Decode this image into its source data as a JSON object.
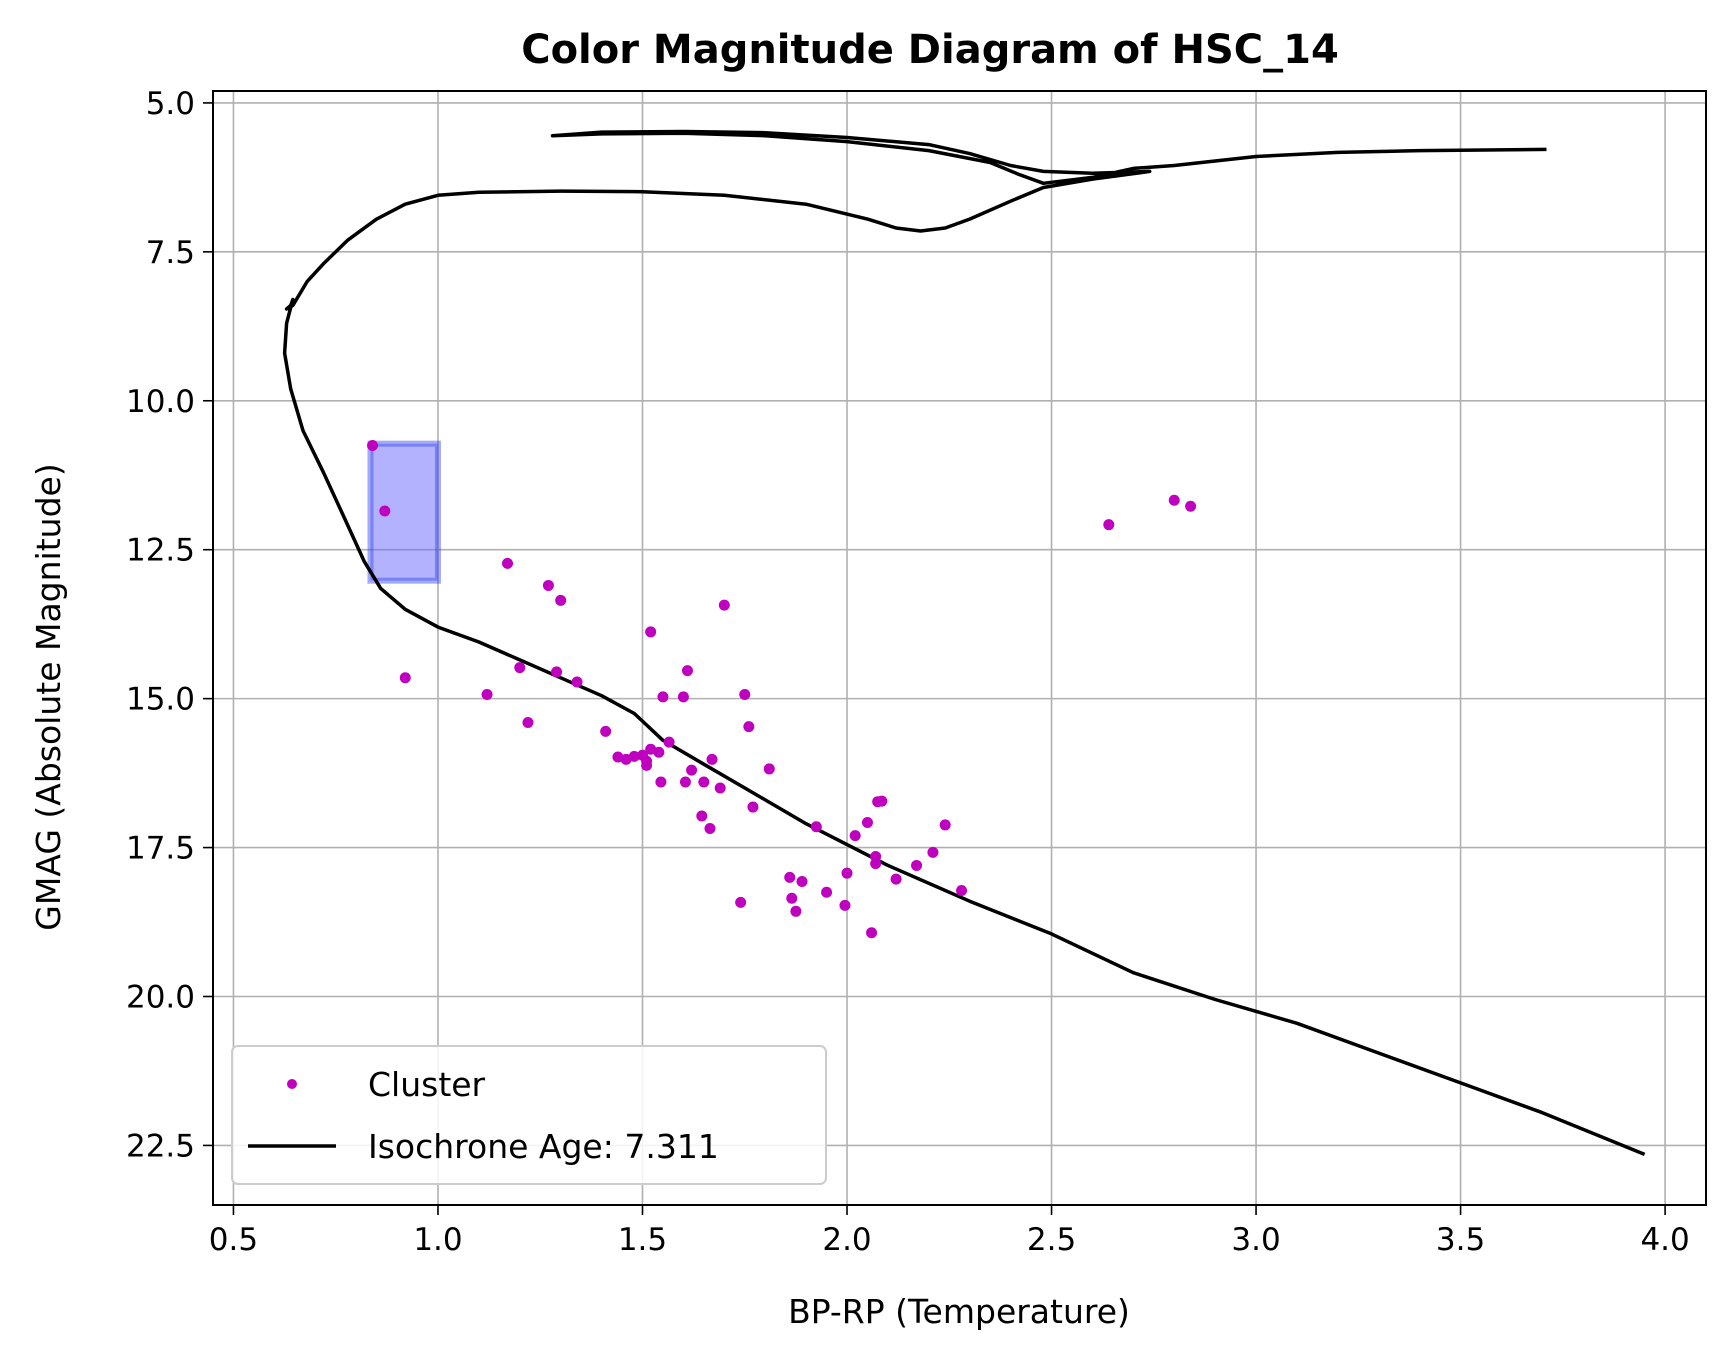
{
  "chart_data": {
    "type": "scatter",
    "title": "Color Magnitude Diagram of HSC_14",
    "xlabel": "BP-RP (Temperature)",
    "ylabel": "GMAG (Absolute Magnitude)",
    "xlim": [
      0.45,
      4.1
    ],
    "ylim": [
      23.5,
      4.8
    ],
    "y_inverted": true,
    "grid": true,
    "legend_position": "bottom-left",
    "x_ticks": [
      "0.5",
      "1.0",
      "1.5",
      "2.0",
      "2.5",
      "3.0",
      "3.5",
      "4.0"
    ],
    "y_ticks": [
      "5.0",
      "7.5",
      "10.0",
      "12.5",
      "15.0",
      "17.5",
      "20.0",
      "22.5"
    ],
    "series": [
      {
        "name": "Cluster",
        "kind": "scatter",
        "color": "#bf00bf",
        "points": [
          [
            0.84,
            10.75
          ],
          [
            0.87,
            11.85
          ],
          [
            0.92,
            14.65
          ],
          [
            1.12,
            14.93
          ],
          [
            1.17,
            12.73
          ],
          [
            1.2,
            14.48
          ],
          [
            1.22,
            15.4
          ],
          [
            1.27,
            13.1
          ],
          [
            1.29,
            14.55
          ],
          [
            1.3,
            13.35
          ],
          [
            1.34,
            14.72
          ],
          [
            1.41,
            15.55
          ],
          [
            1.44,
            15.98
          ],
          [
            1.46,
            16.02
          ],
          [
            1.48,
            15.97
          ],
          [
            1.5,
            15.95
          ],
          [
            1.51,
            16.05
          ],
          [
            1.51,
            16.12
          ],
          [
            1.52,
            13.88
          ],
          [
            1.52,
            15.85
          ],
          [
            1.54,
            15.9
          ],
          [
            1.545,
            16.4
          ],
          [
            1.55,
            14.97
          ],
          [
            1.565,
            15.73
          ],
          [
            1.6,
            14.97
          ],
          [
            1.605,
            16.4
          ],
          [
            1.61,
            14.53
          ],
          [
            1.62,
            16.2
          ],
          [
            1.645,
            16.97
          ],
          [
            1.65,
            16.4
          ],
          [
            1.665,
            17.18
          ],
          [
            1.67,
            16.02
          ],
          [
            1.69,
            16.5
          ],
          [
            1.7,
            13.43
          ],
          [
            1.74,
            18.42
          ],
          [
            1.75,
            14.93
          ],
          [
            1.76,
            15.47
          ],
          [
            1.77,
            16.82
          ],
          [
            1.81,
            16.18
          ],
          [
            1.86,
            18.0
          ],
          [
            1.865,
            18.35
          ],
          [
            1.875,
            18.57
          ],
          [
            1.89,
            18.07
          ],
          [
            1.925,
            17.15
          ],
          [
            1.95,
            18.25
          ],
          [
            1.995,
            18.47
          ],
          [
            2.0,
            17.93
          ],
          [
            2.02,
            17.3
          ],
          [
            2.05,
            17.08
          ],
          [
            2.06,
            18.93
          ],
          [
            2.07,
            17.65
          ],
          [
            2.07,
            17.77
          ],
          [
            2.075,
            16.73
          ],
          [
            2.085,
            16.72
          ],
          [
            2.12,
            18.03
          ],
          [
            2.17,
            17.8
          ],
          [
            2.21,
            17.58
          ],
          [
            2.24,
            17.12
          ],
          [
            2.28,
            18.22
          ],
          [
            2.64,
            12.08
          ],
          [
            2.8,
            11.67
          ],
          [
            2.84,
            11.77
          ]
        ]
      },
      {
        "name": "Isochrone Age: 7.311",
        "kind": "line",
        "color": "#000000",
        "points": [
          [
            3.95,
            22.65
          ],
          [
            3.7,
            21.95
          ],
          [
            3.5,
            21.45
          ],
          [
            3.3,
            20.95
          ],
          [
            3.1,
            20.45
          ],
          [
            2.9,
            20.05
          ],
          [
            2.7,
            19.6
          ],
          [
            2.5,
            18.95
          ],
          [
            2.3,
            18.4
          ],
          [
            2.1,
            17.8
          ],
          [
            1.9,
            17.1
          ],
          [
            1.75,
            16.5
          ],
          [
            1.65,
            16.1
          ],
          [
            1.55,
            15.7
          ],
          [
            1.48,
            15.25
          ],
          [
            1.4,
            14.95
          ],
          [
            1.3,
            14.65
          ],
          [
            1.2,
            14.35
          ],
          [
            1.1,
            14.05
          ],
          [
            1.0,
            13.8
          ],
          [
            0.92,
            13.5
          ],
          [
            0.86,
            13.15
          ],
          [
            0.82,
            12.7
          ],
          [
            0.77,
            11.95
          ],
          [
            0.72,
            11.2
          ],
          [
            0.67,
            10.5
          ],
          [
            0.64,
            9.8
          ],
          [
            0.625,
            9.2
          ],
          [
            0.63,
            8.7
          ],
          [
            0.645,
            8.3
          ],
          [
            0.64,
            8.4
          ],
          [
            0.63,
            8.46
          ],
          [
            0.645,
            8.4
          ],
          [
            0.68,
            8.0
          ],
          [
            0.72,
            7.7
          ],
          [
            0.78,
            7.3
          ],
          [
            0.85,
            6.95
          ],
          [
            0.92,
            6.7
          ],
          [
            1.0,
            6.55
          ],
          [
            1.1,
            6.5
          ],
          [
            1.3,
            6.48
          ],
          [
            1.5,
            6.49
          ],
          [
            1.7,
            6.55
          ],
          [
            1.9,
            6.7
          ],
          [
            2.05,
            6.95
          ],
          [
            2.12,
            7.1
          ],
          [
            2.18,
            7.15
          ],
          [
            2.24,
            7.1
          ],
          [
            2.3,
            6.95
          ],
          [
            2.4,
            6.65
          ],
          [
            2.48,
            6.42
          ],
          [
            2.6,
            6.28
          ],
          [
            2.74,
            6.15
          ],
          [
            2.6,
            6.18
          ],
          [
            2.48,
            6.15
          ],
          [
            2.4,
            6.05
          ],
          [
            2.3,
            5.85
          ],
          [
            2.2,
            5.7
          ],
          [
            2.0,
            5.58
          ],
          [
            1.8,
            5.5
          ],
          [
            1.6,
            5.48
          ],
          [
            1.4,
            5.49
          ],
          [
            1.28,
            5.55
          ],
          [
            1.4,
            5.52
          ],
          [
            1.6,
            5.51
          ],
          [
            1.8,
            5.55
          ],
          [
            2.0,
            5.65
          ],
          [
            2.2,
            5.8
          ],
          [
            2.35,
            6.0
          ],
          [
            2.42,
            6.2
          ],
          [
            2.48,
            6.35
          ],
          [
            2.6,
            6.25
          ],
          [
            2.7,
            6.1
          ],
          [
            2.8,
            6.05
          ],
          [
            3.0,
            5.9
          ],
          [
            3.2,
            5.83
          ],
          [
            3.4,
            5.8
          ],
          [
            3.71,
            5.78
          ]
        ]
      }
    ],
    "highlight_box": {
      "x0": 0.835,
      "x1": 1.0,
      "y0": 10.72,
      "y1": 13.02,
      "color": "#6666ff"
    }
  }
}
